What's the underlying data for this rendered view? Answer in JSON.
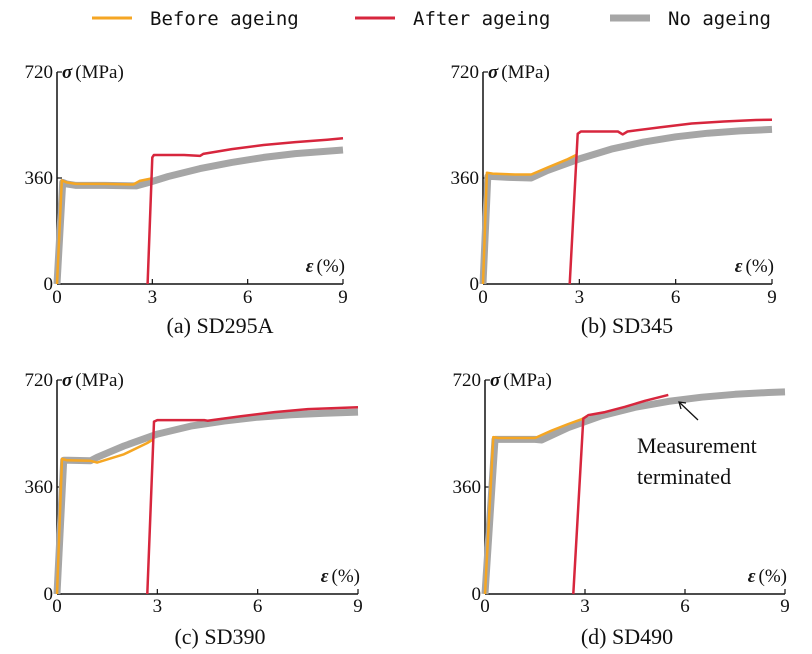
{
  "legend": [
    {
      "label": "Before ageing",
      "color": "#f5a623"
    },
    {
      "label": "After ageing",
      "color": "#d7263d"
    },
    {
      "label": "No ageing",
      "color": "#a6a6a6"
    }
  ],
  "chart_data": [
    {
      "type": "line",
      "caption": "(a)  SD295A",
      "ylabel_symbol": "σ",
      "ylabel_unit": "(MPa)",
      "xlabel_symbol": "ε",
      "xlabel_unit": "(%)",
      "xlim": [
        0,
        9
      ],
      "ylim": [
        0,
        720
      ],
      "xticks": [
        "0",
        "3",
        "6",
        "9"
      ],
      "yticks": [
        "0",
        "360",
        "720"
      ],
      "series": [
        {
          "name": "No ageing",
          "color": "#a6a6a6",
          "x": [
            0,
            0.18,
            0.3,
            0.6,
            1.5,
            2.5,
            2.9,
            3.5,
            4.5,
            5.5,
            6.5,
            7.5,
            9.0
          ],
          "y": [
            0,
            345,
            340,
            335,
            335,
            333,
            345,
            365,
            392,
            413,
            430,
            443,
            455
          ]
        },
        {
          "name": "Before ageing",
          "color": "#f5a623",
          "x": [
            0,
            0.15,
            0.3,
            0.6,
            1.5,
            2.4,
            2.6,
            2.95
          ],
          "y": [
            0,
            352,
            345,
            340,
            340,
            338,
            350,
            358
          ]
        },
        {
          "name": "After ageing",
          "color": "#d7263d",
          "x": [
            2.85,
            3.0,
            3.05,
            4.0,
            4.5,
            4.6,
            5.5,
            6.5,
            7.5,
            8.5,
            9.0
          ],
          "y": [
            0,
            430,
            438,
            438,
            435,
            442,
            458,
            472,
            482,
            490,
            495
          ]
        }
      ]
    },
    {
      "type": "line",
      "caption": "(b)  SD345",
      "ylabel_symbol": "σ",
      "ylabel_unit": "(MPa)",
      "xlabel_symbol": "ε",
      "xlabel_unit": "(%)",
      "xlim": [
        0,
        9
      ],
      "ylim": [
        0,
        720
      ],
      "xticks": [
        "0",
        "3",
        "6",
        "9"
      ],
      "yticks": [
        "0",
        "360",
        "720"
      ],
      "series": [
        {
          "name": "No ageing",
          "color": "#a6a6a6",
          "x": [
            0,
            0.15,
            0.3,
            0.8,
            1.5,
            2.0,
            3.0,
            4.0,
            5.0,
            6.0,
            7.0,
            8.0,
            9.0
          ],
          "y": [
            0,
            365,
            365,
            362,
            360,
            385,
            425,
            458,
            482,
            500,
            512,
            520,
            525
          ]
        },
        {
          "name": "Before ageing",
          "color": "#f5a623",
          "x": [
            0,
            0.12,
            0.3,
            1.0,
            1.5,
            2.0,
            2.6,
            2.9
          ],
          "y": [
            0,
            378,
            375,
            372,
            372,
            395,
            422,
            438
          ]
        },
        {
          "name": "After ageing",
          "color": "#d7263d",
          "x": [
            2.7,
            2.95,
            3.05,
            4.2,
            4.35,
            4.5,
            5.5,
            6.5,
            7.5,
            8.5,
            9.0
          ],
          "y": [
            0,
            510,
            518,
            518,
            508,
            518,
            532,
            545,
            552,
            557,
            558
          ]
        }
      ]
    },
    {
      "type": "line",
      "caption": "(c)  SD390",
      "ylabel_symbol": "σ",
      "ylabel_unit": "(MPa)",
      "xlabel_symbol": "ε",
      "xlabel_unit": "(%)",
      "xlim": [
        0,
        9
      ],
      "ylim": [
        0,
        720
      ],
      "xticks": [
        "0",
        "3",
        "6",
        "9"
      ],
      "yticks": [
        "0",
        "360",
        "720"
      ],
      "series": [
        {
          "name": "No ageing",
          "color": "#a6a6a6",
          "x": [
            0,
            0.2,
            0.35,
            1.0,
            1.2,
            2.0,
            3.0,
            4.0,
            5.0,
            6.0,
            7.0,
            8.0,
            9.0
          ],
          "y": [
            0,
            450,
            450,
            448,
            460,
            498,
            538,
            565,
            582,
            595,
            603,
            608,
            612
          ]
        },
        {
          "name": "Before ageing",
          "color": "#f5a623",
          "x": [
            0,
            0.15,
            0.3,
            1.0,
            1.2,
            2.0,
            2.7,
            2.9
          ],
          "y": [
            0,
            455,
            450,
            448,
            442,
            470,
            508,
            522
          ]
        },
        {
          "name": "After ageing",
          "color": "#d7263d",
          "x": [
            2.7,
            2.9,
            3.0,
            4.4,
            4.5,
            5.5,
            6.5,
            7.5,
            8.5,
            9.0
          ],
          "y": [
            0,
            580,
            585,
            585,
            583,
            598,
            612,
            622,
            626,
            628
          ]
        }
      ]
    },
    {
      "type": "line",
      "caption": "(d)  SD490",
      "ylabel_symbol": "σ",
      "ylabel_unit": "(MPa)",
      "xlabel_symbol": "ε",
      "xlabel_unit": "(%)",
      "xlim": [
        0,
        9
      ],
      "ylim": [
        0,
        720
      ],
      "xticks": [
        "0",
        "3",
        "6",
        "9"
      ],
      "yticks": [
        "0",
        "360",
        "720"
      ],
      "annotation": {
        "text_lines": [
          "Measurement",
          "terminated"
        ]
      },
      "series": [
        {
          "name": "No ageing",
          "color": "#a6a6a6",
          "x": [
            0,
            0.3,
            0.45,
            1.5,
            1.7,
            2.5,
            3.5,
            4.5,
            5.5,
            6.5,
            7.5,
            8.5,
            9.0
          ],
          "y": [
            0,
            520,
            520,
            520,
            518,
            560,
            600,
            628,
            648,
            662,
            672,
            678,
            680
          ]
        },
        {
          "name": "Before ageing",
          "color": "#f5a623",
          "x": [
            0,
            0.25,
            0.4,
            1.5,
            2.0,
            2.5,
            2.9,
            3.05
          ],
          "y": [
            0,
            528,
            525,
            525,
            550,
            572,
            588,
            598
          ]
        },
        {
          "name": "After ageing",
          "color": "#d7263d",
          "x": [
            2.65,
            2.95,
            3.1,
            3.6,
            4.2,
            4.8,
            5.5
          ],
          "y": [
            0,
            590,
            602,
            612,
            630,
            650,
            670
          ]
        }
      ]
    }
  ]
}
